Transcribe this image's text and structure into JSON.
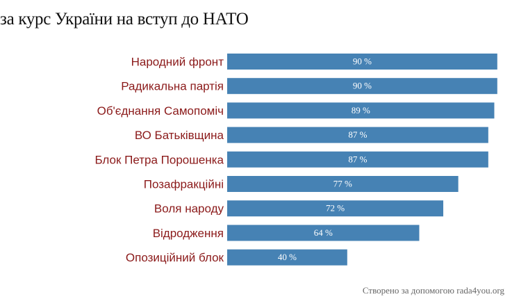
{
  "title": "за курс України на вступ до НАТО",
  "credit": "Створено за допомогою rada4you.org",
  "colors": {
    "bar": "#4682b4",
    "label": "#8b1a1a",
    "value_text": "#ffffff"
  },
  "chart_data": {
    "type": "bar",
    "orientation": "horizontal",
    "title": "за курс України на вступ до НАТО",
    "xlabel": "",
    "ylabel": "",
    "xlim": [
      0,
      100
    ],
    "value_suffix": " %",
    "grid": false,
    "legend": "none",
    "categories": [
      "Народний фронт",
      "Радикальна партія",
      "Об'єднання Самопоміч",
      "ВО Батьківщина",
      "Блок Петра Порошенка",
      "Позафракційні",
      "Воля народу",
      "Відродження",
      "Опозиційний блок"
    ],
    "values": [
      90,
      90,
      89,
      87,
      87,
      77,
      72,
      64,
      40
    ]
  }
}
